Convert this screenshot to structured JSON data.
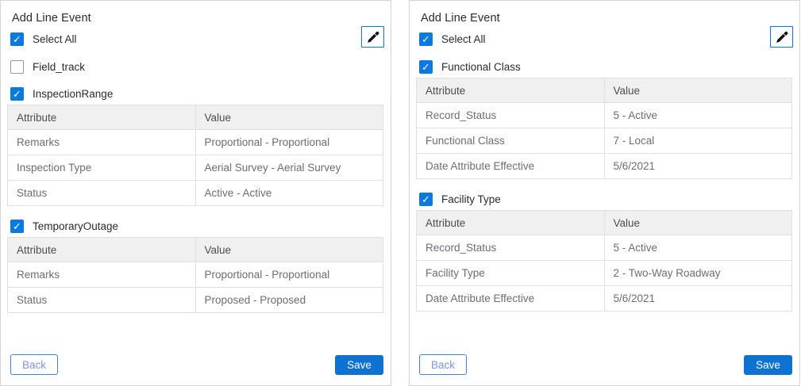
{
  "colors": {
    "accent_blue": "#0a7ae0",
    "save_button_blue": "#0e72d2",
    "back_button_border_blue": "#3f80e0",
    "back_button_text_blue": "#7e93e6",
    "table_header_bg": "#f0f0f0"
  },
  "panels": [
    {
      "title": "Add Line Event",
      "picker_icon": "eyedropper-icon",
      "select_all": {
        "label": "Select All",
        "checked": true
      },
      "groups": [
        {
          "label": "Field_track",
          "checked": false,
          "table": null
        },
        {
          "label": "InspectionRange",
          "checked": true,
          "table": {
            "headers": [
              "Attribute",
              "Value"
            ],
            "rows": [
              [
                "Remarks",
                "Proportional - Proportional"
              ],
              [
                "Inspection Type",
                "Aerial Survey - Aerial Survey"
              ],
              [
                "Status",
                "Active - Active"
              ]
            ]
          }
        },
        {
          "label": "TemporaryOutage",
          "checked": true,
          "table": {
            "headers": [
              "Attribute",
              "Value"
            ],
            "rows": [
              [
                "Remarks",
                "Proportional - Proportional"
              ],
              [
                "Status",
                "Proposed - Proposed"
              ]
            ]
          }
        }
      ],
      "footer": {
        "back_label": "Back",
        "save_label": "Save"
      }
    },
    {
      "title": "Add Line Event",
      "picker_icon": "eyedropper-icon",
      "select_all": {
        "label": "Select All",
        "checked": true
      },
      "groups": [
        {
          "label": "Functional Class",
          "checked": true,
          "table": {
            "headers": [
              "Attribute",
              "Value"
            ],
            "rows": [
              [
                "Record_Status",
                "5 - Active"
              ],
              [
                "Functional Class",
                "7 - Local"
              ],
              [
                "Date Attribute Effective",
                "5/6/2021"
              ]
            ]
          }
        },
        {
          "label": "Facility Type",
          "checked": true,
          "table": {
            "headers": [
              "Attribute",
              "Value"
            ],
            "rows": [
              [
                "Record_Status",
                "5 - Active"
              ],
              [
                "Facility Type",
                "2 - Two-Way Roadway"
              ],
              [
                "Date Attribute Effective",
                "5/6/2021"
              ]
            ]
          }
        }
      ],
      "footer": {
        "back_label": "Back",
        "save_label": "Save"
      }
    }
  ]
}
